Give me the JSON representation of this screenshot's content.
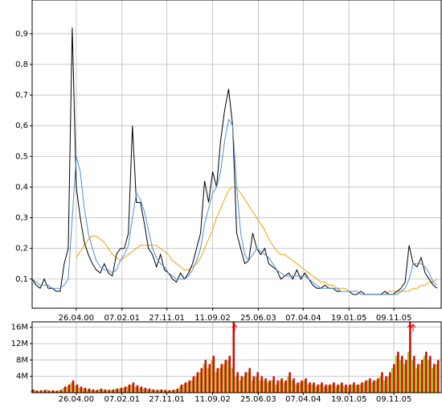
{
  "chart_data": [
    {
      "type": "line",
      "xlim": [
        0,
        102
      ],
      "xticks": [
        {
          "value": 11,
          "label": "26.04.00"
        },
        {
          "value": 22.4,
          "label": "07.02.01"
        },
        {
          "value": 33.6,
          "label": "27.11.01"
        },
        {
          "value": 45,
          "label": "11.09.02"
        },
        {
          "value": 56.4,
          "label": "25.06.03"
        },
        {
          "value": 67.6,
          "label": "07.04.04"
        },
        {
          "value": 79,
          "label": "19.01.05"
        },
        {
          "value": 90.2,
          "label": "09.11.05"
        }
      ],
      "ylim": [
        0.005,
        1.01
      ],
      "yticks": [
        {
          "value": 0.1,
          "label": "0,1"
        },
        {
          "value": 0.2,
          "label": "0,2"
        },
        {
          "value": 0.3,
          "label": "0,3"
        },
        {
          "value": 0.4,
          "label": "0,4"
        },
        {
          "value": 0.5,
          "label": "0,5"
        },
        {
          "value": 0.6,
          "label": "0,6"
        },
        {
          "value": 0.7,
          "label": "0,7"
        },
        {
          "value": 0.8,
          "label": "0,8"
        },
        {
          "value": 0.9,
          "label": "0,9"
        }
      ],
      "grid": true,
      "series": [
        {
          "color": "#f0a000",
          "values": [
            null,
            null,
            null,
            null,
            null,
            null,
            null,
            null,
            null,
            null,
            null,
            0.17,
            0.19,
            0.21,
            0.23,
            0.24,
            0.24,
            0.23,
            0.22,
            0.2,
            0.18,
            0.17,
            0.16,
            0.17,
            0.18,
            0.19,
            0.2,
            0.21,
            0.21,
            0.21,
            0.21,
            0.21,
            0.2,
            0.19,
            0.18,
            0.16,
            0.15,
            0.14,
            0.13,
            0.13,
            0.14,
            0.15,
            0.17,
            0.2,
            0.23,
            0.26,
            0.3,
            0.33,
            0.36,
            0.39,
            0.4,
            0.4,
            0.38,
            0.36,
            0.34,
            0.32,
            0.3,
            0.28,
            0.26,
            0.23,
            0.21,
            0.19,
            0.18,
            0.18,
            0.17,
            0.16,
            0.15,
            0.14,
            0.13,
            0.12,
            0.11,
            0.1,
            0.09,
            0.09,
            0.08,
            0.08,
            0.07,
            0.07,
            0.07,
            0.06,
            0.06,
            0.06,
            0.05,
            0.05,
            0.05,
            0.05,
            0.05,
            0.05,
            0.05,
            0.06,
            0.06,
            0.06,
            0.06,
            0.06,
            0.06,
            0.07,
            0.07,
            0.08,
            0.08,
            0.09,
            0.09,
            0.1
          ]
        },
        {
          "color": "#000000",
          "values": [
            0.1,
            0.08,
            0.07,
            0.1,
            0.07,
            0.07,
            0.06,
            0.06,
            0.15,
            0.2,
            0.92,
            0.4,
            0.3,
            0.22,
            0.18,
            0.15,
            0.13,
            0.12,
            0.15,
            0.12,
            0.11,
            0.18,
            0.2,
            0.2,
            0.25,
            0.6,
            0.35,
            0.35,
            0.28,
            0.2,
            0.18,
            0.14,
            0.18,
            0.13,
            0.12,
            0.1,
            0.09,
            0.12,
            0.1,
            0.12,
            0.15,
            0.2,
            0.25,
            0.42,
            0.35,
            0.45,
            0.4,
            0.55,
            0.65,
            0.72,
            0.6,
            0.25,
            0.2,
            0.15,
            0.16,
            0.25,
            0.2,
            0.18,
            0.2,
            0.15,
            0.14,
            0.13,
            0.1,
            0.11,
            0.12,
            0.1,
            0.13,
            0.1,
            0.12,
            0.1,
            0.08,
            0.07,
            0.07,
            0.08,
            0.07,
            0.07,
            0.06,
            0.06,
            0.06,
            0.06,
            0.05,
            0.05,
            0.06,
            0.05,
            0.05,
            0.05,
            0.05,
            0.05,
            0.06,
            0.05,
            0.05,
            0.06,
            0.07,
            0.09,
            0.21,
            0.15,
            0.14,
            0.17,
            0.12,
            0.1,
            0.08,
            0.07
          ]
        },
        {
          "color": "#4a90d9",
          "values": [
            0.1,
            0.09,
            0.08,
            0.08,
            0.08,
            0.07,
            0.07,
            0.07,
            0.08,
            0.1,
            0.3,
            0.5,
            0.45,
            0.33,
            0.25,
            0.2,
            0.16,
            0.14,
            0.13,
            0.13,
            0.12,
            0.13,
            0.16,
            0.18,
            0.21,
            0.3,
            0.38,
            0.36,
            0.32,
            0.26,
            0.2,
            0.17,
            0.15,
            0.14,
            0.12,
            0.11,
            0.1,
            0.1,
            0.1,
            0.11,
            0.13,
            0.16,
            0.2,
            0.28,
            0.33,
            0.38,
            0.4,
            0.45,
            0.55,
            0.62,
            0.6,
            0.4,
            0.25,
            0.18,
            0.16,
            0.18,
            0.2,
            0.19,
            0.18,
            0.17,
            0.15,
            0.13,
            0.12,
            0.11,
            0.11,
            0.11,
            0.11,
            0.11,
            0.11,
            0.1,
            0.09,
            0.08,
            0.07,
            0.07,
            0.07,
            0.07,
            0.07,
            0.06,
            0.06,
            0.06,
            0.06,
            0.06,
            0.05,
            0.05,
            0.05,
            0.05,
            0.05,
            0.05,
            0.05,
            0.05,
            0.05,
            0.05,
            0.06,
            0.07,
            0.1,
            0.15,
            0.15,
            0.15,
            0.14,
            0.12,
            0.09,
            0.08
          ]
        }
      ]
    },
    {
      "type": "bar",
      "xlim": [
        0,
        102
      ],
      "xticks": [
        {
          "value": 11,
          "label": "26.04.00"
        },
        {
          "value": 22.4,
          "label": "07.02.01"
        },
        {
          "value": 33.6,
          "label": "27.11.01"
        },
        {
          "value": 45,
          "label": "11.09.02"
        },
        {
          "value": 56.4,
          "label": "25.06.03"
        },
        {
          "value": 67.6,
          "label": "07.04.04"
        },
        {
          "value": 79,
          "label": "19.01.05"
        },
        {
          "value": 90.2,
          "label": "09.11.05"
        }
      ],
      "ylim": [
        0,
        17.3
      ],
      "yticks": [
        {
          "value": 4,
          "label": "4M"
        },
        {
          "value": 8,
          "label": "8M"
        },
        {
          "value": 12,
          "label": "12M"
        },
        {
          "value": 16,
          "label": "16M"
        }
      ],
      "grid": true,
      "series": [
        {
          "color": "#99cc00",
          "values": [
            0.5,
            0.6,
            0.4,
            0.5,
            0.7,
            0.5,
            0.4,
            0.6,
            1.2,
            1.5,
            2.5,
            1.8,
            1.2,
            1,
            0.8,
            0.7,
            0.6,
            0.8,
            0.7,
            0.6,
            0.6,
            0.9,
            1,
            1.2,
            1.5,
            2,
            1.4,
            1.2,
            1,
            0.8,
            0.7,
            0.6,
            0.7,
            0.6,
            0.5,
            0.6,
            0.8,
            1.5,
            2,
            2.5,
            3,
            4,
            5,
            7,
            6,
            8,
            5,
            6,
            7,
            8,
            6,
            4,
            3,
            4,
            5,
            3,
            4,
            3,
            3,
            2.5,
            3,
            2,
            3,
            2.5,
            4,
            3,
            2,
            2.5,
            3,
            2,
            2,
            1.5,
            2,
            1.5,
            1.8,
            2,
            1.5,
            2,
            1.6,
            1.5,
            2,
            1.8,
            2,
            2.5,
            3,
            2.5,
            3,
            4,
            3,
            4,
            6,
            9,
            8,
            7,
            10,
            8,
            6,
            7,
            9,
            8,
            6,
            7
          ]
        },
        {
          "color": "#e00000",
          "values": [
            0.8,
            0.5,
            0.6,
            0.7,
            0.5,
            0.6,
            0.5,
            0.7,
            1.5,
            2,
            3,
            2,
            1.5,
            1.2,
            1,
            0.8,
            0.7,
            1,
            0.8,
            0.7,
            0.8,
            1,
            1.2,
            1.5,
            2,
            2.5,
            1.8,
            1.5,
            1.2,
            1,
            0.8,
            0.7,
            0.8,
            0.7,
            0.6,
            0.7,
            1,
            2,
            2.5,
            3,
            4,
            5,
            6,
            8,
            7,
            9,
            6,
            7,
            8,
            9,
            17.3,
            5,
            4,
            5,
            6,
            4,
            5,
            4,
            3.5,
            3,
            4,
            3,
            3.5,
            3,
            5,
            3.5,
            2.5,
            3,
            3.5,
            2.5,
            2.5,
            2,
            2.5,
            2,
            2,
            2.5,
            2,
            2.5,
            2,
            2,
            2.5,
            2,
            2.5,
            3,
            3.5,
            3,
            3.5,
            5,
            4,
            5,
            7,
            10,
            9,
            8,
            17.3,
            9,
            7,
            8,
            10,
            9,
            7,
            8
          ]
        }
      ]
    }
  ]
}
